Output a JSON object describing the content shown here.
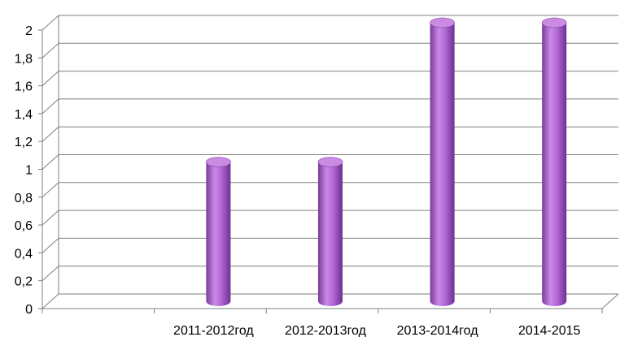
{
  "chart_data": {
    "type": "bar",
    "title": "",
    "xlabel": "",
    "ylabel": "",
    "categories": [
      "",
      "2011-2012год",
      "2012-2013год",
      "2013-2014год",
      "2014-2015"
    ],
    "values": [
      0,
      1,
      1,
      2,
      2
    ],
    "ylim": [
      0,
      2
    ],
    "yticks": [
      0,
      0.2,
      0.4,
      0.6,
      0.8,
      1,
      1.2,
      1.4,
      1.6,
      1.8,
      2
    ],
    "ytick_labels": [
      "0",
      "0,2",
      "0,4",
      "0,6",
      "0,8",
      "1",
      "1,2",
      "1,4",
      "1,6",
      "1,8",
      "2"
    ],
    "grid": true,
    "legend": "none",
    "bar_style": "3d-cylinder",
    "colors": {
      "bar": "#b36bd6",
      "bar_dark": "#7a3a9e",
      "bar_light": "#e2b8f2",
      "bar_top": "#c98be4",
      "grid": "#7f7f7f",
      "axis": "#7f7f7f"
    }
  }
}
